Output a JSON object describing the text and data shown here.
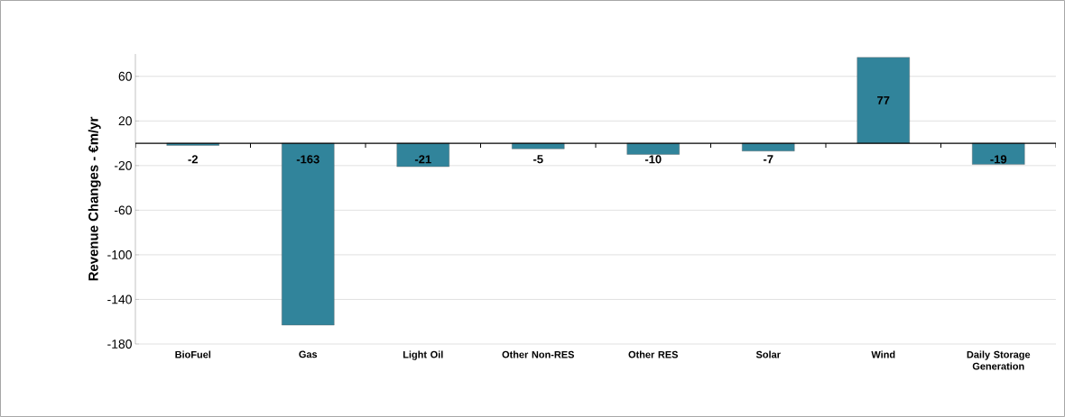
{
  "chart_data": {
    "type": "bar",
    "ylabel": "Revenue Changes  - €m/yr",
    "categories": [
      "BioFuel",
      "Gas",
      "Light Oil",
      "Other Non-RES",
      "Other RES",
      "Solar",
      "Wind",
      "Daily Storage Generation"
    ],
    "values": [
      -2,
      -163,
      -21,
      -5,
      -10,
      -7,
      77,
      -19
    ],
    "color": "#31849b",
    "ylim": [
      -180,
      80
    ],
    "yticks": [
      -180,
      -140,
      -100,
      -60,
      -20,
      20,
      60
    ],
    "grid": "y",
    "data_labels": true
  }
}
